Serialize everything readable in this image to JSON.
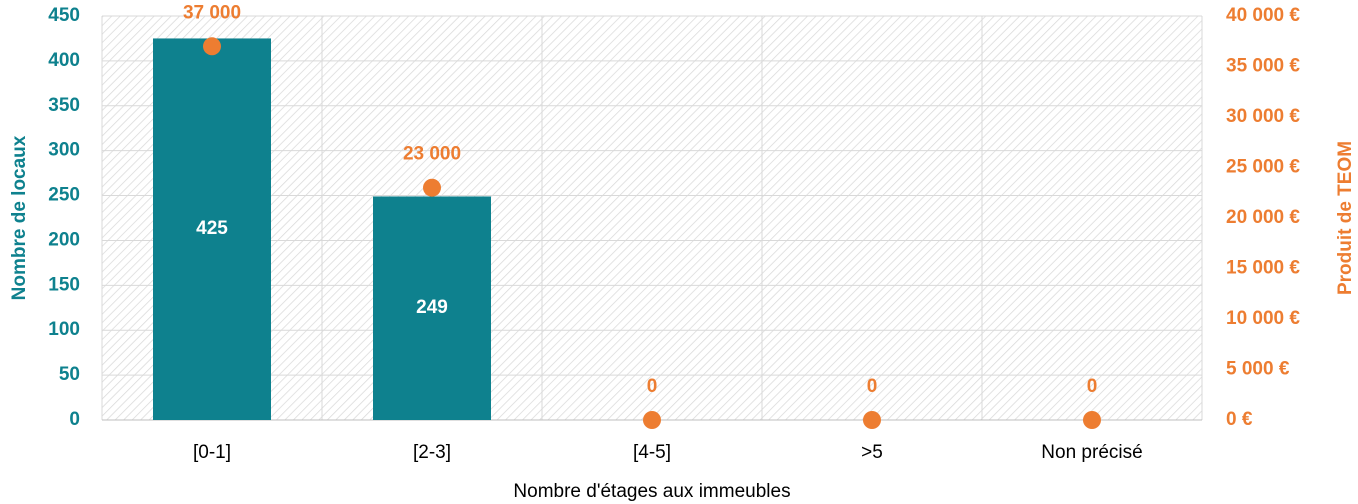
{
  "chart_data": {
    "type": "bar",
    "x_label": "Nombre d'étages aux immeubles",
    "y_label": "Nombre de locaux",
    "y2_label": "Produit de TEOM",
    "categories": [
      "[0-1]",
      "[2-3]",
      "[4-5]",
      ">5",
      "Non précisé"
    ],
    "series": [
      {
        "type": "bar",
        "color": "#0e818e",
        "label_color": "#ffffff",
        "values": [
          425,
          249,
          0,
          0,
          0
        ]
      },
      {
        "type": "scatter",
        "axis": "y2",
        "color": "#ed7d31",
        "values": [
          37000,
          23000,
          0,
          0,
          0
        ],
        "value_labels": [
          "37 000",
          "23 000",
          "0",
          "0",
          "0"
        ]
      }
    ],
    "ylim": [
      0,
      450
    ],
    "yticks": [
      0,
      50,
      100,
      150,
      200,
      250,
      300,
      350,
      400,
      450
    ],
    "y2lim": [
      0,
      40000
    ],
    "y2ticks": [
      {
        "value": 0,
        "label": "0 €"
      },
      {
        "value": 5000,
        "label": "5 000 €"
      },
      {
        "value": 10000,
        "label": "10 000 €"
      },
      {
        "value": 15000,
        "label": "15 000 €"
      },
      {
        "value": 20000,
        "label": "20 000 €"
      },
      {
        "value": 25000,
        "label": "25 000 €"
      },
      {
        "value": 30000,
        "label": "30 000 €"
      },
      {
        "value": 35000,
        "label": "35 000 €"
      },
      {
        "value": 40000,
        "label": "40 000 €"
      }
    ],
    "grid": true
  }
}
